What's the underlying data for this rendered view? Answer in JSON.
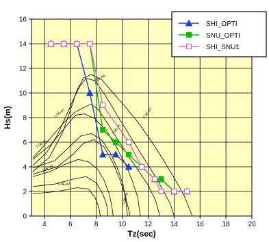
{
  "chart_data": {
    "type": "line",
    "xlabel": "Tz(sec)",
    "ylabel": "Hs(m)",
    "xlim": [
      3,
      20
    ],
    "ylim": [
      0,
      16
    ],
    "x_ticks": [
      4,
      6,
      8,
      10,
      12,
      14,
      16,
      18,
      20
    ],
    "y_ticks": [
      0,
      2,
      4,
      6,
      8,
      10,
      12,
      14,
      16
    ],
    "grid": true,
    "legend_position": "top-right",
    "colors": {
      "background": "#ffffc0",
      "grid": "#000000",
      "contour": "#000000"
    },
    "series": [
      {
        "name": "SHI_OPTI",
        "color": "#1f3fd0",
        "marker": "triangle",
        "x": [
          4.5,
          5.5,
          6.5,
          7.5,
          8.5,
          9.5,
          10.5,
          11.5,
          12.5,
          13.0,
          14.0,
          15.0
        ],
        "y": [
          14,
          14,
          14,
          10,
          5,
          5,
          4,
          4,
          3,
          3,
          2,
          2
        ]
      },
      {
        "name": "SNU_OPTI",
        "color": "#00c000",
        "marker": "square",
        "x": [
          4.5,
          5.5,
          6.5,
          7.5,
          8.5,
          9.5,
          10.5,
          11.5,
          12.5,
          13.0,
          14.0,
          15.0
        ],
        "y": [
          14,
          14,
          14,
          14,
          7,
          6,
          5,
          4,
          3,
          3,
          2,
          2
        ]
      },
      {
        "name": "SHI_SNU1",
        "color": "#e060c0",
        "marker": "open-square",
        "x": [
          4.5,
          5.5,
          6.5,
          7.5,
          8.5,
          10.5,
          11.5,
          12.5,
          13.0,
          14.0,
          15.0
        ],
        "y": [
          14,
          14,
          14,
          14,
          9,
          6,
          4,
          3,
          2,
          2,
          2
        ]
      }
    ],
    "contours": [
      {
        "label": "1.0E-06",
        "label_at": [
          3.8,
          5.8
        ],
        "label_angle": -30,
        "points": [
          [
            3.1,
            4.7
          ],
          [
            3.7,
            5.4
          ],
          [
            4.6,
            6.5
          ],
          [
            5.6,
            7.7
          ],
          [
            6.3,
            8.4
          ],
          [
            7.0,
            8.8
          ],
          [
            7.6,
            9.1
          ],
          [
            8.1,
            8.7
          ],
          [
            8.7,
            7.8
          ],
          [
            9.6,
            6.3
          ],
          [
            10.4,
            5.0
          ],
          [
            11.3,
            3.6
          ],
          [
            12.0,
            2.5
          ],
          [
            12.6,
            1.2
          ],
          [
            12.9,
            0
          ]
        ]
      },
      {
        "label": "1.0E-07",
        "label_at": [
          5.2,
          8.3
        ],
        "label_angle": -35,
        "points": [
          [
            3.1,
            4.1
          ],
          [
            4.2,
            5.2
          ],
          [
            5.0,
            6.6
          ],
          [
            5.7,
            8.2
          ],
          [
            6.2,
            9.4
          ],
          [
            6.7,
            10.5
          ],
          [
            7.2,
            11.2
          ],
          [
            7.9,
            11.0
          ],
          [
            8.7,
            9.8
          ],
          [
            9.6,
            8.2
          ],
          [
            10.6,
            6.5
          ],
          [
            11.6,
            4.8
          ],
          [
            12.5,
            3.3
          ],
          [
            13.2,
            2.0
          ],
          [
            13.7,
            1.0
          ],
          [
            14.0,
            0
          ]
        ]
      },
      {
        "label": "1.0E-08",
        "label_at": [
          8.3,
          11.1
        ],
        "label_angle": -30,
        "points": [
          [
            3.1,
            3.6
          ],
          [
            4.4,
            4.8
          ],
          [
            5.4,
            6.8
          ],
          [
            6.0,
            8.6
          ],
          [
            6.5,
            10.2
          ],
          [
            7.0,
            11.2
          ],
          [
            7.6,
            11.5
          ],
          [
            8.4,
            11.1
          ],
          [
            9.3,
            10.0
          ],
          [
            10.3,
            8.8
          ],
          [
            11.3,
            7.5
          ],
          [
            12.3,
            6.0
          ],
          [
            13.2,
            4.5
          ],
          [
            14.0,
            3.1
          ],
          [
            14.8,
            1.6
          ],
          [
            15.4,
            0
          ]
        ]
      },
      {
        "label": "1.0E-03",
        "label_at": [
          12.0,
          8.3
        ],
        "label_angle": -55,
        "points": [
          [
            3.1,
            3.4
          ],
          [
            5.0,
            4.0
          ],
          [
            6.2,
            5.0
          ],
          [
            7.0,
            5.9
          ],
          [
            7.8,
            6.2
          ],
          [
            8.6,
            5.6
          ],
          [
            9.3,
            4.3
          ],
          [
            9.8,
            3.0
          ],
          [
            10.2,
            1.8
          ],
          [
            10.5,
            0.5
          ],
          [
            10.6,
            0
          ]
        ]
      },
      {
        "label": "1.0E-05",
        "label_at": [
          9.6,
          7.0
        ],
        "label_angle": -50,
        "points": [
          [
            3.1,
            4.6
          ],
          [
            4.5,
            5.8
          ],
          [
            5.6,
            7.2
          ],
          [
            6.4,
            8.2
          ],
          [
            7.1,
            8.3
          ],
          [
            7.9,
            7.9
          ],
          [
            8.8,
            6.9
          ],
          [
            9.6,
            5.5
          ],
          [
            10.3,
            4.1
          ],
          [
            10.8,
            2.8
          ],
          [
            11.2,
            1.5
          ],
          [
            11.4,
            0
          ]
        ]
      },
      {
        "label": "1.0E-04",
        "label_at": [
          10.3,
          1.4
        ],
        "label_angle": -70,
        "points": [
          [
            3.1,
            3.9
          ],
          [
            4.8,
            4.5
          ],
          [
            5.9,
            5.6
          ],
          [
            6.8,
            6.5
          ],
          [
            7.6,
            6.7
          ],
          [
            8.4,
            6.2
          ],
          [
            9.1,
            5.1
          ],
          [
            9.7,
            3.7
          ],
          [
            10.1,
            2.4
          ],
          [
            10.3,
            1.0
          ],
          [
            10.4,
            0
          ]
        ]
      },
      {
        "label": "1.0E-02",
        "label_at": [
          4.3,
          3.8
        ],
        "label_angle": -25,
        "points": [
          [
            3.1,
            3.2
          ],
          [
            4.4,
            3.6
          ],
          [
            5.6,
            4.2
          ],
          [
            6.6,
            4.6
          ],
          [
            7.4,
            4.4
          ],
          [
            8.1,
            3.8
          ],
          [
            8.6,
            2.9
          ],
          [
            9.0,
            1.8
          ],
          [
            9.2,
            0.8
          ],
          [
            9.3,
            0
          ]
        ]
      },
      {
        "label": "5.0E-02",
        "label_at": [
          5.5,
          2.5
        ],
        "label_angle": 0,
        "points": [
          [
            3.1,
            2.4
          ],
          [
            4.8,
            2.6
          ],
          [
            6.2,
            3.0
          ],
          [
            7.2,
            3.2
          ],
          [
            8.0,
            2.7
          ],
          [
            8.5,
            1.8
          ],
          [
            8.8,
            0.9
          ],
          [
            8.9,
            0
          ]
        ]
      },
      {
        "label": "",
        "label_at": [
          0,
          0
        ],
        "label_angle": 0,
        "points": [
          [
            3.1,
            1.8
          ],
          [
            5.0,
            2.0
          ],
          [
            6.5,
            2.3
          ],
          [
            7.4,
            2.2
          ],
          [
            7.9,
            1.5
          ],
          [
            8.2,
            0.7
          ],
          [
            8.3,
            0
          ]
        ]
      }
    ]
  }
}
